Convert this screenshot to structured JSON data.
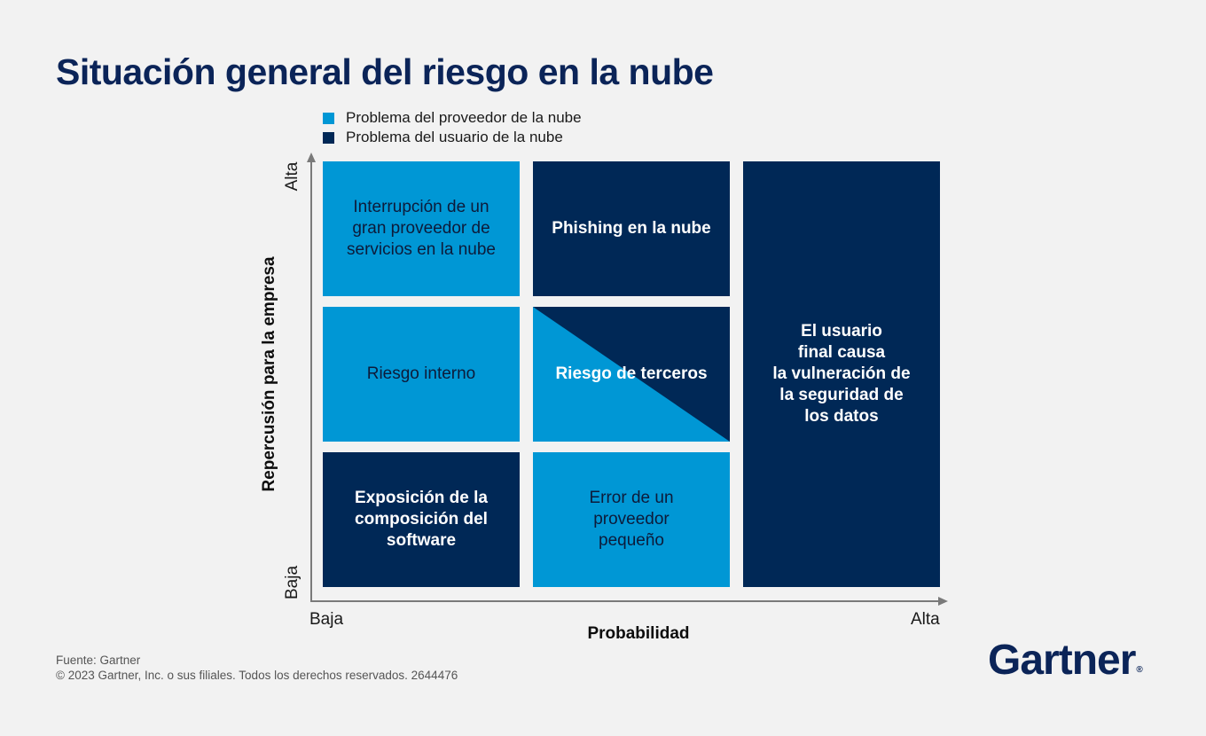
{
  "title": "Situación general del riesgo en la nube",
  "legend": [
    {
      "label": "Problema del proveedor de la nube",
      "color": "#0097d5"
    },
    {
      "label": "Problema del usuario de la nube",
      "color": "#002856"
    }
  ],
  "axes": {
    "y": {
      "label": "Repercusión para la empresa",
      "high": "Alta",
      "low": "Baja"
    },
    "x": {
      "label": "Probabilidad",
      "low": "Baja",
      "high": "Alta"
    }
  },
  "cells": {
    "top_left": {
      "text": "Interrupción de un\ngran proveedor de\nservicios en la nube",
      "category": "provider"
    },
    "top_middle": {
      "text": "Phishing en la nube",
      "category": "user"
    },
    "middle_left": {
      "text": "Riesgo interno",
      "category": "provider"
    },
    "middle_middle": {
      "text": "Riesgo de terceros",
      "category": "mixed"
    },
    "bottom_left": {
      "text": "Exposición de la\ncomposición del\nsoftware",
      "category": "user"
    },
    "bottom_middle": {
      "text": "Error de un\nproveedor\npequeño",
      "category": "provider"
    },
    "right_column": {
      "text": "El usuario\nfinal causa\nla vulneración de\nla seguridad de\nlos datos",
      "category": "user"
    }
  },
  "footer": {
    "source": "Fuente: Gartner",
    "copyright": "© 2023 Gartner, Inc. o sus filiales. Todos los derechos reservados. 2644476"
  },
  "logo": {
    "text": "Gartner",
    "mark": "®"
  }
}
